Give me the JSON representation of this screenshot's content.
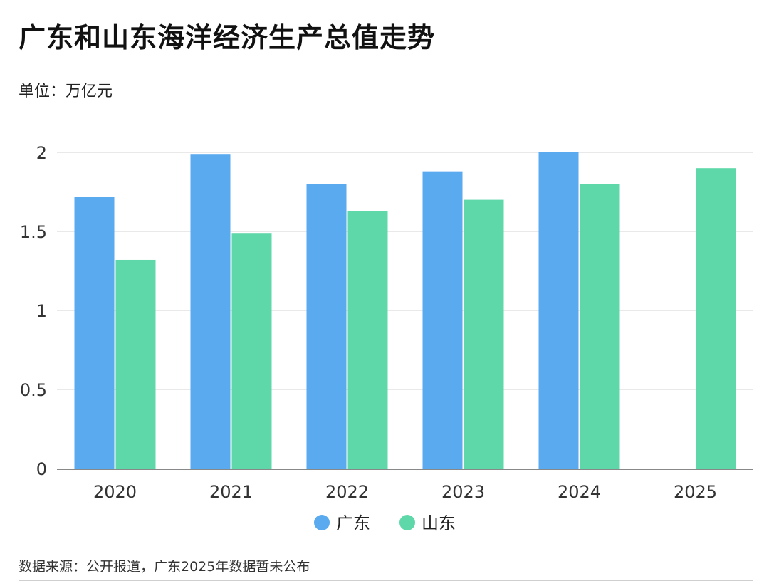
{
  "title": "广东和山东海洋经济生产总值走势",
  "unit_label": "单位：万亿元",
  "footer_note": "数据来源：公开报道，广东2025年数据暂未公布",
  "colors": {
    "guangdong": "#5aaaf0",
    "shandong": "#5ed8a8",
    "grid": "#e2e2e2",
    "axis": "#888888"
  },
  "chart_data": {
    "type": "bar",
    "title": "广东和山东海洋经济生产总值走势",
    "ylabel": "单位：万亿元",
    "xlabel": "",
    "categories": [
      "2020",
      "2021",
      "2022",
      "2023",
      "2024",
      "2025"
    ],
    "y_ticks": [
      "0",
      "0.5",
      "1",
      "1.5",
      "2"
    ],
    "ylim": [
      0,
      2
    ],
    "grid": true,
    "legend_position": "bottom-center",
    "series": [
      {
        "name": "广东",
        "values": [
          1.72,
          1.99,
          1.8,
          1.88,
          2.0,
          null
        ]
      },
      {
        "name": "山东",
        "values": [
          1.32,
          1.49,
          1.63,
          1.7,
          1.8,
          1.9
        ]
      }
    ]
  }
}
